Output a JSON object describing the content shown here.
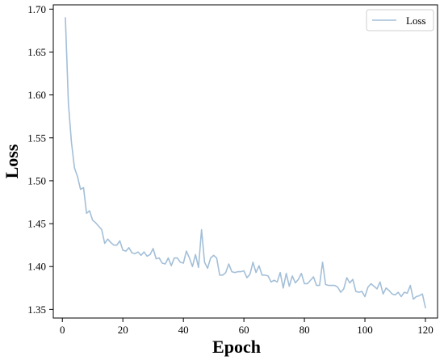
{
  "chart_data": {
    "type": "line",
    "xlabel": "Epoch",
    "ylabel": "Loss",
    "xlim": [
      -3,
      124
    ],
    "ylim": [
      1.34,
      1.705
    ],
    "xticks": [
      0,
      20,
      40,
      60,
      80,
      100,
      120
    ],
    "yticks": [
      1.35,
      1.4,
      1.45,
      1.5,
      1.55,
      1.6,
      1.65,
      1.7
    ],
    "ytick_labels": [
      "1.35",
      "1.40",
      "1.45",
      "1.50",
      "1.55",
      "1.60",
      "1.65",
      "1.70"
    ],
    "grid": false,
    "legend": {
      "position": "top-right"
    },
    "series": [
      {
        "name": "Loss",
        "color": "#a3bfd8",
        "x": [
          1,
          2,
          3,
          4,
          5,
          6,
          7,
          8,
          9,
          10,
          11,
          12,
          13,
          14,
          15,
          16,
          17,
          18,
          19,
          20,
          21,
          22,
          23,
          24,
          25,
          26,
          27,
          28,
          29,
          30,
          31,
          32,
          33,
          34,
          35,
          36,
          37,
          38,
          39,
          40,
          41,
          42,
          43,
          44,
          45,
          46,
          47,
          48,
          49,
          50,
          51,
          52,
          53,
          54,
          55,
          56,
          57,
          58,
          59,
          60,
          61,
          62,
          63,
          64,
          65,
          66,
          67,
          68,
          69,
          70,
          71,
          72,
          73,
          74,
          75,
          76,
          77,
          78,
          79,
          80,
          81,
          82,
          83,
          84,
          85,
          86,
          87,
          88,
          89,
          90,
          91,
          92,
          93,
          94,
          95,
          96,
          97,
          98,
          99,
          100,
          101,
          102,
          103,
          104,
          105,
          106,
          107,
          108,
          109,
          110,
          111,
          112,
          113,
          114,
          115,
          116,
          117,
          118,
          119,
          120
        ],
        "values": [
          1.69,
          1.59,
          1.545,
          1.515,
          1.505,
          1.49,
          1.492,
          1.462,
          1.465,
          1.454,
          1.451,
          1.447,
          1.443,
          1.427,
          1.432,
          1.428,
          1.425,
          1.425,
          1.43,
          1.419,
          1.418,
          1.422,
          1.416,
          1.415,
          1.417,
          1.413,
          1.417,
          1.412,
          1.414,
          1.421,
          1.409,
          1.41,
          1.404,
          1.403,
          1.41,
          1.401,
          1.41,
          1.41,
          1.405,
          1.404,
          1.418,
          1.41,
          1.4,
          1.414,
          1.399,
          1.443,
          1.405,
          1.398,
          1.41,
          1.413,
          1.41,
          1.39,
          1.39,
          1.393,
          1.403,
          1.394,
          1.393,
          1.394,
          1.394,
          1.395,
          1.387,
          1.391,
          1.405,
          1.393,
          1.401,
          1.39,
          1.39,
          1.389,
          1.382,
          1.384,
          1.382,
          1.393,
          1.375,
          1.392,
          1.377,
          1.389,
          1.381,
          1.385,
          1.392,
          1.38,
          1.38,
          1.384,
          1.388,
          1.378,
          1.378,
          1.405,
          1.379,
          1.378,
          1.378,
          1.378,
          1.376,
          1.37,
          1.374,
          1.387,
          1.381,
          1.385,
          1.371,
          1.37,
          1.371,
          1.365,
          1.376,
          1.38,
          1.377,
          1.374,
          1.382,
          1.368,
          1.375,
          1.372,
          1.368,
          1.367,
          1.37,
          1.365,
          1.37,
          1.369,
          1.378,
          1.362,
          1.365,
          1.366,
          1.368,
          1.352
        ]
      }
    ]
  }
}
